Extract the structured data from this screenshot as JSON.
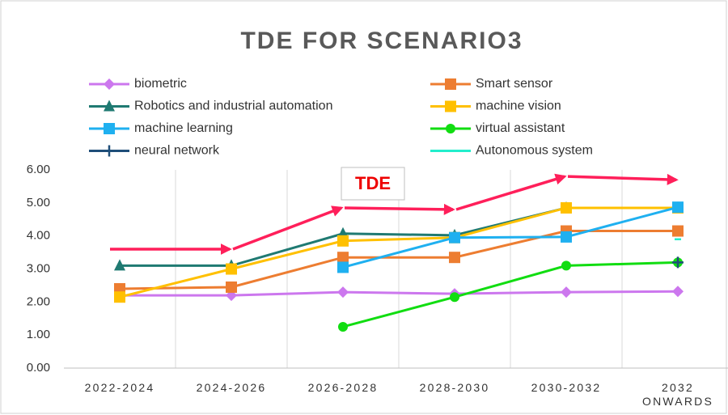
{
  "chart_data": {
    "type": "line",
    "title": "TDE FOR SCENARIO3",
    "categories": [
      "2022-2024",
      "2024-2026",
      "2026-2028",
      "2028-2030",
      "2030-2032",
      "2032 ONWARDS"
    ],
    "ylim": [
      0,
      6
    ],
    "yticks": [
      {
        "value": 0,
        "label": "0.00"
      },
      {
        "value": 1,
        "label": "1.00"
      },
      {
        "value": 2,
        "label": "2.00"
      },
      {
        "value": 3,
        "label": "3.00"
      },
      {
        "value": 4,
        "label": "4.00"
      },
      {
        "value": 5,
        "label": "5.00"
      },
      {
        "value": 6,
        "label": "6.00"
      }
    ],
    "grid": true,
    "series": [
      {
        "name": "biometric",
        "color": "#cc77ee",
        "marker": "diamond",
        "values": [
          2.2,
          2.2,
          2.3,
          2.25,
          2.3,
          2.32
        ]
      },
      {
        "name": "Smart sensor",
        "color": "#ed7d31",
        "marker": "square",
        "values": [
          2.4,
          2.45,
          3.35,
          3.35,
          4.15,
          4.15
        ]
      },
      {
        "name": "Robotics and industrial automation",
        "color": "#1f7a72",
        "marker": "triangle",
        "values": [
          3.1,
          3.1,
          4.07,
          4.02,
          4.85,
          4.85
        ]
      },
      {
        "name": "machine vision",
        "color": "#ffc000",
        "marker": "square",
        "values": [
          2.15,
          3.0,
          3.85,
          3.95,
          4.85,
          4.85
        ]
      },
      {
        "name": "machine learning",
        "color": "#1fb0f0",
        "marker": "square",
        "values": [
          null,
          null,
          3.05,
          3.95,
          3.97,
          4.87
        ]
      },
      {
        "name": "virtual assistant",
        "color": "#11dd11",
        "marker": "circle",
        "values": [
          null,
          null,
          1.25,
          2.15,
          3.1,
          3.2
        ]
      },
      {
        "name": "neural network",
        "color": "#1f4e79",
        "marker": "plus",
        "values": [
          null,
          null,
          null,
          null,
          null,
          3.2
        ]
      },
      {
        "name": "Autonomous system",
        "color": "#22eecc",
        "marker": "dash",
        "values": [
          null,
          null,
          null,
          null,
          null,
          3.9
        ]
      }
    ],
    "tde_line": {
      "color": "#ff1f5a",
      "values": [
        3.6,
        3.6,
        4.85,
        4.8,
        5.8,
        5.7
      ]
    },
    "annotation": "TDE"
  }
}
